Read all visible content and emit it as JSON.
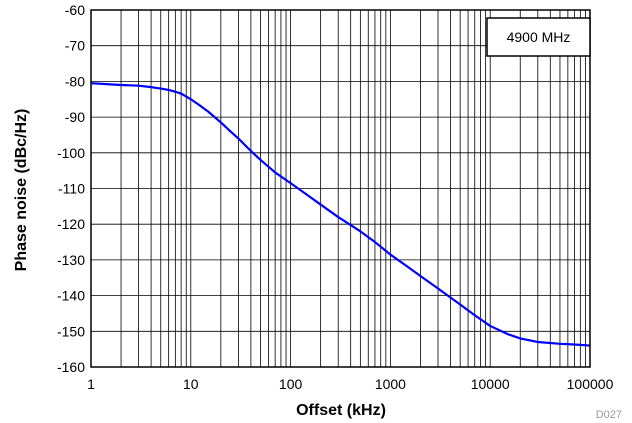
{
  "chart_data": {
    "type": "line",
    "xscale": "log",
    "xlim": [
      1,
      100000
    ],
    "ylim": [
      -160,
      -60
    ],
    "xlabel": "Offset (kHz)",
    "ylabel": "Phase noise (dBc/Hz)",
    "x_ticks": [
      "1",
      "10",
      "100",
      "1000",
      "10000",
      "100000"
    ],
    "y_ticks": [
      "-60",
      "-70",
      "-80",
      "-90",
      "-100",
      "-110",
      "-120",
      "-130",
      "-140",
      "-150",
      "-160"
    ],
    "grid": true,
    "legend": {
      "text": "4900 MHz",
      "placement": "top-right"
    },
    "figure_id": "D027",
    "series": [
      {
        "name": "4900 MHz",
        "color": "#0000ff",
        "x": [
          1,
          1.5,
          2,
          3,
          4,
          5,
          6,
          7,
          8,
          10,
          12,
          15,
          20,
          25,
          30,
          40,
          50,
          70,
          100,
          150,
          200,
          300,
          500,
          700,
          1000,
          1500,
          2000,
          3000,
          5000,
          7000,
          10000,
          15000,
          20000,
          30000,
          50000,
          70000,
          100000
        ],
        "y": [
          -80.5,
          -80.8,
          -81,
          -81.2,
          -81.6,
          -82,
          -82.4,
          -82.9,
          -83.4,
          -85,
          -86.5,
          -88.5,
          -91.5,
          -94,
          -96,
          -99.5,
          -102,
          -105.5,
          -108.5,
          -112,
          -114.5,
          -118,
          -122,
          -125,
          -128.5,
          -132,
          -134.5,
          -138,
          -142.5,
          -145.5,
          -148.5,
          -150.8,
          -152,
          -153,
          -153.5,
          -153.7,
          -154
        ]
      }
    ]
  }
}
